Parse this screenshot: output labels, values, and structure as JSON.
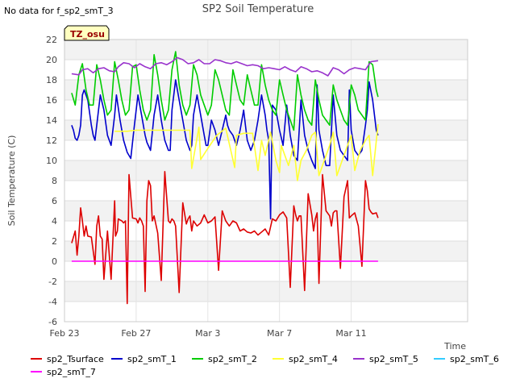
{
  "note": "No data for f_sp2_smT_3",
  "chart_data": {
    "type": "line",
    "title": "SP2 Soil Temperature",
    "xlabel": "Time",
    "ylabel": "Soil Temperature (C)",
    "xlim": [
      0,
      22.5
    ],
    "ylim": [
      -6,
      22
    ],
    "yticks": [
      -6,
      -4,
      -2,
      0,
      2,
      4,
      6,
      8,
      10,
      12,
      14,
      16,
      18,
      20,
      22
    ],
    "xticks": [
      {
        "x": 0,
        "label": "Feb 23"
      },
      {
        "x": 4,
        "label": "Feb 27"
      },
      {
        "x": 8,
        "label": "Mar 3"
      },
      {
        "x": 12,
        "label": "Mar 7"
      },
      {
        "x": 16,
        "label": "Mar 11"
      }
    ],
    "tz_label": "TZ_osu",
    "grid": true,
    "legend_position": "bottom",
    "series": [
      {
        "name": "sp2_Tsurface",
        "color": "#dd0000",
        "x": [
          0.4,
          0.6,
          0.7,
          0.8,
          0.9,
          1.0,
          1.1,
          1.2,
          1.3,
          1.5,
          1.7,
          1.8,
          1.9,
          2.0,
          2.1,
          2.2,
          2.4,
          2.6,
          2.8,
          2.85,
          2.95,
          3.0,
          3.1,
          3.2,
          3.3,
          3.4,
          3.5,
          3.6,
          3.8,
          4.0,
          4.1,
          4.2,
          4.3,
          4.4,
          4.5,
          4.6,
          4.7,
          4.8,
          4.9,
          5.0,
          5.2,
          5.4,
          5.6,
          5.8,
          5.9,
          6.0,
          6.1,
          6.2,
          6.4,
          6.6,
          6.8,
          6.9,
          7.0,
          7.1,
          7.2,
          7.4,
          7.6,
          7.8,
          8.0,
          8.2,
          8.4,
          8.6,
          8.8,
          9.0,
          9.2,
          9.4,
          9.6,
          9.8,
          10.0,
          10.2,
          10.4,
          10.6,
          10.8,
          11.0,
          11.2,
          11.4,
          11.6,
          11.8,
          12.0,
          12.2,
          12.4,
          12.6,
          12.8,
          12.9,
          13.0,
          13.1,
          13.2,
          13.4,
          13.6,
          13.8,
          13.9,
          14.0,
          14.1,
          14.2,
          14.4,
          14.6,
          14.8,
          14.9,
          15.0,
          15.1,
          15.2,
          15.4,
          15.6,
          15.8,
          15.9,
          16.0,
          16.2,
          16.4,
          16.6,
          16.8,
          16.9,
          17.0,
          17.1,
          17.2,
          17.4,
          17.5
        ],
        "y": [
          1.8,
          3.0,
          0.6,
          2.5,
          5.3,
          4.0,
          2.5,
          3.5,
          2.5,
          2.4,
          -0.3,
          3.5,
          4.5,
          2.5,
          2.2,
          -1.8,
          3.0,
          -1.8,
          6.0,
          2.5,
          3.0,
          4.2,
          4.1,
          4.0,
          3.8,
          4.0,
          -4.2,
          8.6,
          4.3,
          4.2,
          3.8,
          4.3,
          4.0,
          3.5,
          -3.0,
          6.0,
          8.0,
          7.5,
          4.0,
          4.5,
          2.8,
          -1.9,
          8.9,
          4.0,
          3.8,
          4.2,
          4.0,
          3.5,
          -3.1,
          5.8,
          3.7,
          4.2,
          4.5,
          3.0,
          4.0,
          3.5,
          3.8,
          4.6,
          3.8,
          4.0,
          4.4,
          -0.9,
          5.0,
          4.0,
          3.5,
          4.0,
          3.8,
          3.0,
          3.2,
          2.9,
          2.8,
          3.0,
          2.6,
          2.9,
          3.2,
          2.6,
          4.2,
          4.0,
          4.6,
          4.9,
          4.3,
          -2.6,
          5.5,
          4.6,
          4.0,
          4.5,
          4.5,
          -2.9,
          6.7,
          4.6,
          3.0,
          4.2,
          4.8,
          -2.2,
          8.6,
          5.0,
          4.5,
          3.5,
          4.8,
          5.0,
          5.0,
          -0.7,
          6.4,
          8.0,
          4.3,
          4.5,
          4.8,
          3.5,
          -0.5,
          8.0,
          7.0,
          5.2,
          4.9,
          4.7,
          4.8,
          4.3
        ]
      },
      {
        "name": "sp2_smT_1",
        "color": "#0000cc",
        "x": [
          0.4,
          0.5,
          0.6,
          0.7,
          0.8,
          0.9,
          1.0,
          1.1,
          1.3,
          1.5,
          1.6,
          1.7,
          2.0,
          2.2,
          2.4,
          2.6,
          2.8,
          2.9,
          3.1,
          3.3,
          3.5,
          3.7,
          3.9,
          4.1,
          4.3,
          4.5,
          4.6,
          4.8,
          5.0,
          5.2,
          5.4,
          5.6,
          5.8,
          5.9,
          6.0,
          6.2,
          6.4,
          6.6,
          6.8,
          7.0,
          7.1,
          7.2,
          7.4,
          7.6,
          7.8,
          7.9,
          8.0,
          8.2,
          8.4,
          8.6,
          8.8,
          9.0,
          9.1,
          9.2,
          9.4,
          9.6,
          9.8,
          10.0,
          10.1,
          10.2,
          10.4,
          10.6,
          10.8,
          11.0,
          11.2,
          11.3,
          11.4,
          11.5,
          11.6,
          11.8,
          12.0,
          12.2,
          12.4,
          12.6,
          12.8,
          13.0,
          13.2,
          13.4,
          13.6,
          13.8,
          14.0,
          14.1,
          14.2,
          14.4,
          14.6,
          14.8,
          15.0,
          15.2,
          15.4,
          15.6,
          15.8,
          15.9,
          16.0,
          16.2,
          16.4,
          16.6,
          16.8,
          16.9,
          17.0,
          17.2,
          17.4,
          17.5
        ],
        "y": [
          13.5,
          13.0,
          12.2,
          12.0,
          12.5,
          13.5,
          16.5,
          17.0,
          16.0,
          13.5,
          12.5,
          12.0,
          16.5,
          15.0,
          12.5,
          11.5,
          14.5,
          16.5,
          14.0,
          12.0,
          10.8,
          10.2,
          13.5,
          16.5,
          14.5,
          12.5,
          11.8,
          11.0,
          14.5,
          16.5,
          14.0,
          12.0,
          11.0,
          11.0,
          15.0,
          18.0,
          16.0,
          14.0,
          12.0,
          11.0,
          11.5,
          14.5,
          16.5,
          14.5,
          12.5,
          11.5,
          11.5,
          14.0,
          13.0,
          11.5,
          13.0,
          14.5,
          13.5,
          13.0,
          12.5,
          11.5,
          13.0,
          15.0,
          13.5,
          12.0,
          11.0,
          12.0,
          14.0,
          16.5,
          14.5,
          13.0,
          12.0,
          4.2,
          15.5,
          15.0,
          13.0,
          11.5,
          15.5,
          12.5,
          10.5,
          10.0,
          16.0,
          12.5,
          11.0,
          10.0,
          9.2,
          17.5,
          13.0,
          11.0,
          9.5,
          9.5,
          16.5,
          12.5,
          11.0,
          10.5,
          10.0,
          17.0,
          13.0,
          11.0,
          10.5,
          11.0,
          13.5,
          15.0,
          17.8,
          16.0,
          13.0,
          12.5
        ]
      },
      {
        "name": "sp2_smT_2",
        "color": "#00cc00",
        "x": [
          0.4,
          0.6,
          0.8,
          1.0,
          1.2,
          1.4,
          1.6,
          1.8,
          2.0,
          2.2,
          2.4,
          2.6,
          2.8,
          3.0,
          3.2,
          3.4,
          3.6,
          3.8,
          4.0,
          4.2,
          4.4,
          4.6,
          4.8,
          5.0,
          5.2,
          5.4,
          5.6,
          5.8,
          6.0,
          6.2,
          6.4,
          6.6,
          6.8,
          7.0,
          7.2,
          7.4,
          7.6,
          7.8,
          8.0,
          8.2,
          8.4,
          8.6,
          8.8,
          9.0,
          9.2,
          9.4,
          9.6,
          9.8,
          10.0,
          10.2,
          10.4,
          10.6,
          10.8,
          11.0,
          11.2,
          11.4,
          11.6,
          11.8,
          12.0,
          12.2,
          12.4,
          12.6,
          12.8,
          13.0,
          13.2,
          13.4,
          13.6,
          13.8,
          14.0,
          14.2,
          14.4,
          14.6,
          14.8,
          15.0,
          15.2,
          15.4,
          15.6,
          15.8,
          16.0,
          16.2,
          16.4,
          16.6,
          16.8,
          17.0,
          17.2,
          17.4,
          17.5
        ],
        "y": [
          16.7,
          15.5,
          18.5,
          19.6,
          17.0,
          15.5,
          15.5,
          19.5,
          18.0,
          16.0,
          14.5,
          15.0,
          19.8,
          18.0,
          16.0,
          14.5,
          15.0,
          19.3,
          19.5,
          17.0,
          15.0,
          14.0,
          15.0,
          20.5,
          18.5,
          16.0,
          14.0,
          15.0,
          19.0,
          20.8,
          17.5,
          15.5,
          14.5,
          15.5,
          19.5,
          18.5,
          16.5,
          15.5,
          14.5,
          15.5,
          19.0,
          18.0,
          16.5,
          15.0,
          14.5,
          19.0,
          17.5,
          16.0,
          15.5,
          18.5,
          17.0,
          15.5,
          15.5,
          19.5,
          17.5,
          16.0,
          15.0,
          14.5,
          18.0,
          16.5,
          15.0,
          14.0,
          13.0,
          18.5,
          16.5,
          15.0,
          14.0,
          13.5,
          18.0,
          16.0,
          14.5,
          14.0,
          13.5,
          17.5,
          16.0,
          15.0,
          14.0,
          13.5,
          17.5,
          16.5,
          15.0,
          14.5,
          14.0,
          19.8,
          19.5,
          17.0,
          16.3
        ]
      },
      {
        "name": "sp2_smT_4",
        "color": "#ffff33",
        "x": [
          2.8,
          3.5,
          4.0,
          5.0,
          6.0,
          6.5,
          7.0,
          7.1,
          7.5,
          7.6,
          8.0,
          8.5,
          9.0,
          9.5,
          9.6,
          10.0,
          10.5,
          10.8,
          11.0,
          11.2,
          11.5,
          11.8,
          12.0,
          12.1,
          12.5,
          12.8,
          13.0,
          13.2,
          13.5,
          13.8,
          14.0,
          14.2,
          14.5,
          14.8,
          15.0,
          15.2,
          15.5,
          15.8,
          16.0,
          16.2,
          16.5,
          16.8,
          17.0,
          17.2,
          17.5
        ],
        "y": [
          12.9,
          12.9,
          13.0,
          13.0,
          13.0,
          13.0,
          13.0,
          9.2,
          13.3,
          10.1,
          11.2,
          12.5,
          13.2,
          9.3,
          12.5,
          12.7,
          12.7,
          9.0,
          12.0,
          10.5,
          12.8,
          10.0,
          8.8,
          11.5,
          9.5,
          11.5,
          8.0,
          10.0,
          11.0,
          12.5,
          12.8,
          8.5,
          10.0,
          11.5,
          12.8,
          8.5,
          10.0,
          11.5,
          12.5,
          9.0,
          11.0,
          12.0,
          12.5,
          8.5,
          13.6
        ]
      },
      {
        "name": "sp2_smT_5",
        "color": "#9933cc",
        "x": [
          0.4,
          0.8,
          1.0,
          1.3,
          1.6,
          1.9,
          2.2,
          2.5,
          2.8,
          3.0,
          3.3,
          3.6,
          3.9,
          4.2,
          4.5,
          4.8,
          5.1,
          5.4,
          5.7,
          6.0,
          6.3,
          6.6,
          6.9,
          7.2,
          7.5,
          7.8,
          8.1,
          8.4,
          8.7,
          9.0,
          9.3,
          9.6,
          9.9,
          10.2,
          10.5,
          10.8,
          11.1,
          11.4,
          11.7,
          12.0,
          12.3,
          12.6,
          12.9,
          13.2,
          13.5,
          13.8,
          14.1,
          14.4,
          14.7,
          15.0,
          15.3,
          15.6,
          15.9,
          16.2,
          16.5,
          16.8,
          17.1,
          17.5
        ],
        "y": [
          18.6,
          18.5,
          19.0,
          19.1,
          18.7,
          19.1,
          19.2,
          18.9,
          18.8,
          19.3,
          19.7,
          19.6,
          19.2,
          19.6,
          19.3,
          19.1,
          19.6,
          19.7,
          19.5,
          19.8,
          20.2,
          20.0,
          19.6,
          19.7,
          20.0,
          19.6,
          19.6,
          20.0,
          19.9,
          19.7,
          19.6,
          19.8,
          19.6,
          19.4,
          19.5,
          19.4,
          19.1,
          19.2,
          19.1,
          19.0,
          19.3,
          19.0,
          18.8,
          19.3,
          19.1,
          18.8,
          18.9,
          18.7,
          18.4,
          19.2,
          19.0,
          18.6,
          19.0,
          19.2,
          19.1,
          19.0,
          19.8,
          19.9
        ]
      },
      {
        "name": "sp2_smT_6",
        "color": "#33ccff",
        "x": [],
        "y": []
      },
      {
        "name": "sp2_smT_7",
        "color": "#ff00ff",
        "x": [
          0.4,
          17.5
        ],
        "y": [
          0,
          0
        ]
      }
    ]
  }
}
